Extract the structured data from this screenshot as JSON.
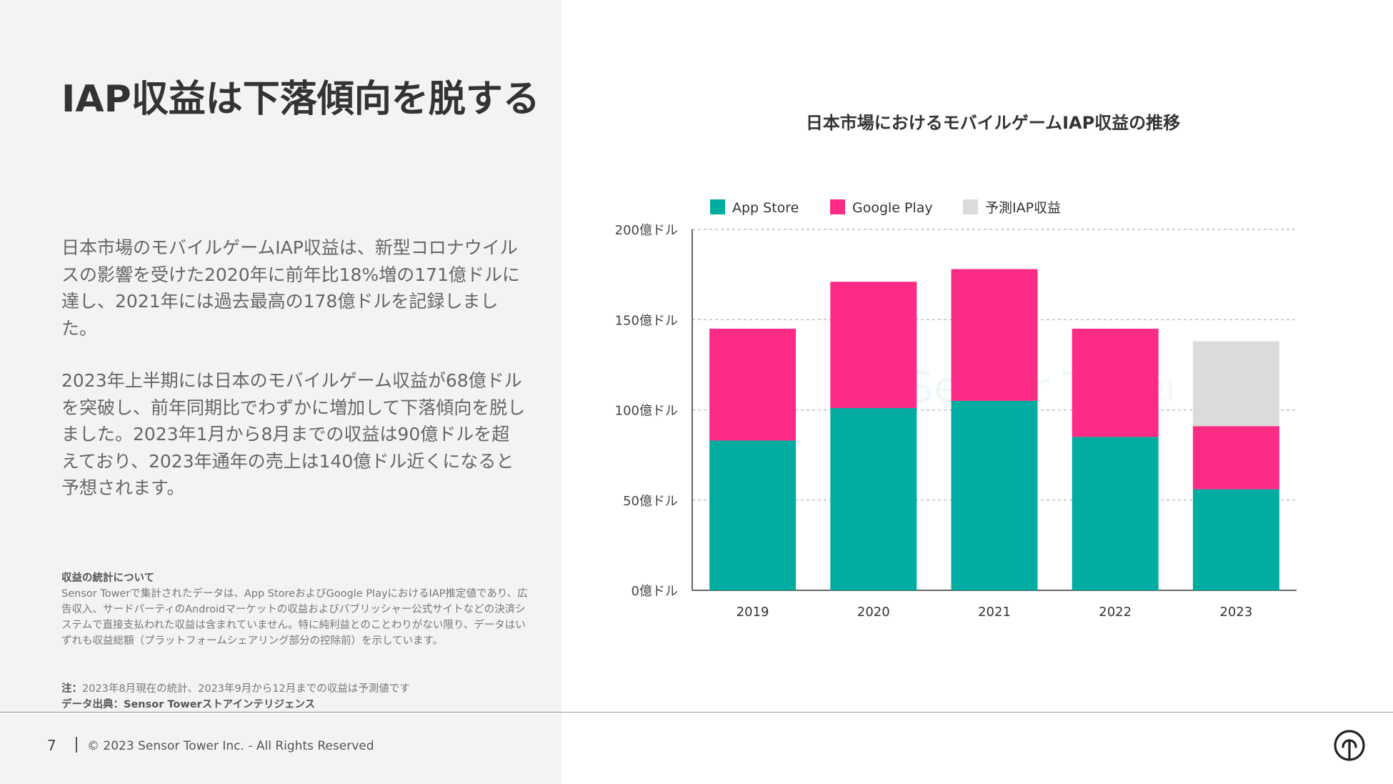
{
  "page": {
    "title": "IAP収益は下落傾向を脱する",
    "paragraph1": "日本市場のモバイルゲームIAP収益は、新型コロナウイルスの影響を受けた2020年に前年比18%増の171億ドルに達し、2021年には過去最高の178億ドルを記録しました。",
    "paragraph2": "2023年上半期には日本のモバイルゲーム収益が68億ドルを突破し、前年同期比でわずかに増加して下落傾向を脱しました。2023年1月から8月までの収益は90億ドルを超えており、2023年通年の売上は140億ドル近くになると予想されます。",
    "notes_heading": "収益の統計について",
    "notes_body": "Sensor Towerで集計されたデータは、App StoreおよびGoogle PlayにおけるIAP推定値であり、広告収入、サードパーティのAndroidマーケットの収益およびパブリッシャー公式サイトなどの決済システムで直接支払われた収益は含まれていません。特に純利益とのことわりがない限り、データはいずれも収益総額（プラットフォームシェアリング部分の控除前）を示しています。",
    "note_label": "注：",
    "note_text": "2023年8月現在の統計、2023年9月から12月までの収益は予測値です",
    "source_label": "データ出典：",
    "source_text": "Sensor Towerストアインテリジェンス",
    "footer_page": "7",
    "footer_copyright": "© 2023 Sensor Tower Inc. - All Rights Reserved",
    "logo_icon": "sensor-tower-logo-icon",
    "watermark_text": "Sensor Tower"
  },
  "chart_data": {
    "type": "bar",
    "stacked": true,
    "title": "日本市場におけるモバイルゲームIAP収益の推移",
    "categories": [
      "2019",
      "2020",
      "2021",
      "2022",
      "2023"
    ],
    "series": [
      {
        "name": "App Store",
        "color": "#00ada0",
        "values": [
          83,
          101,
          105,
          85,
          56
        ]
      },
      {
        "name": "Google Play",
        "color": "#fb2b86",
        "values": [
          62,
          70,
          73,
          60,
          35
        ]
      },
      {
        "name": "予測IAP収益",
        "color": "#dbdbdb",
        "values": [
          0,
          0,
          0,
          0,
          47
        ]
      }
    ],
    "ylim": [
      0,
      200
    ],
    "yticks": [
      0,
      50,
      100,
      150,
      200
    ],
    "ytick_labels": [
      "0億ドル",
      "50億ドル",
      "100億ドル",
      "150億ドル",
      "200億ドル"
    ],
    "xlabel": "",
    "ylabel": "",
    "grid": true,
    "legend_position": "top-left"
  }
}
